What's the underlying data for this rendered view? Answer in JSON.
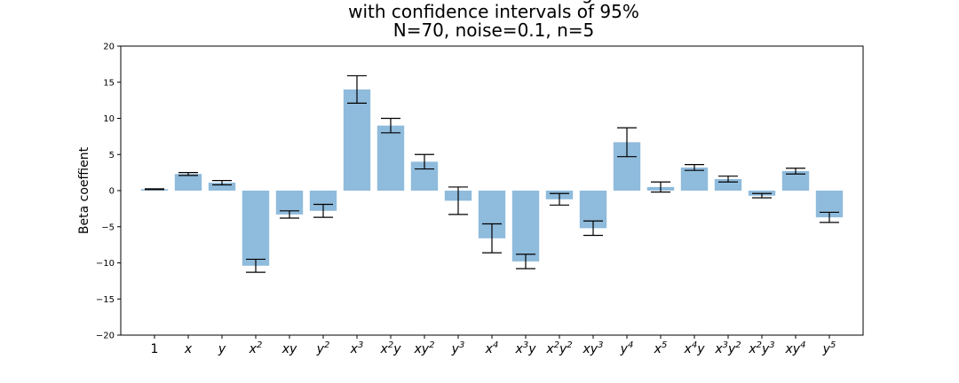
{
  "chart_data": {
    "type": "bar",
    "title_lines": [
      "Beta coefficient from OLS regression",
      "with confidence intervals of 95%",
      "N=70, noise=0.1, n=5"
    ],
    "ylabel": "Beta coeffient",
    "xlabel": "",
    "ylim": [
      -20,
      20
    ],
    "yticks": [
      "20",
      "15",
      "10",
      "5",
      "0",
      "−5",
      "−10",
      "−15",
      "−20"
    ],
    "categories": [
      {
        "base": "1",
        "sup1": "",
        "mid": "",
        "sup2": ""
      },
      {
        "base": "x",
        "sup1": "",
        "mid": "",
        "sup2": ""
      },
      {
        "base": "y",
        "sup1": "",
        "mid": "",
        "sup2": ""
      },
      {
        "base": "x",
        "sup1": "2",
        "mid": "",
        "sup2": ""
      },
      {
        "base": "xy",
        "sup1": "",
        "mid": "",
        "sup2": ""
      },
      {
        "base": "y",
        "sup1": "2",
        "mid": "",
        "sup2": ""
      },
      {
        "base": "x",
        "sup1": "3",
        "mid": "",
        "sup2": ""
      },
      {
        "base": "x",
        "sup1": "2",
        "mid": "y",
        "sup2": ""
      },
      {
        "base": "xy",
        "sup1": "2",
        "mid": "",
        "sup2": ""
      },
      {
        "base": "y",
        "sup1": "3",
        "mid": "",
        "sup2": ""
      },
      {
        "base": "x",
        "sup1": "4",
        "mid": "",
        "sup2": ""
      },
      {
        "base": "x",
        "sup1": "3",
        "mid": "y",
        "sup2": ""
      },
      {
        "base": "x",
        "sup1": "2",
        "mid": "y",
        "sup2": "2"
      },
      {
        "base": "xy",
        "sup1": "3",
        "mid": "",
        "sup2": ""
      },
      {
        "base": "y",
        "sup1": "4",
        "mid": "",
        "sup2": ""
      },
      {
        "base": "x",
        "sup1": "5",
        "mid": "",
        "sup2": ""
      },
      {
        "base": "x",
        "sup1": "4",
        "mid": "y",
        "sup2": ""
      },
      {
        "base": "x",
        "sup1": "3",
        "mid": "y",
        "sup2": "2"
      },
      {
        "base": "x",
        "sup1": "2",
        "mid": "y",
        "sup2": "3"
      },
      {
        "base": "xy",
        "sup1": "4",
        "mid": "",
        "sup2": ""
      },
      {
        "base": "y",
        "sup1": "5",
        "mid": "",
        "sup2": ""
      }
    ],
    "values": [
      0.2,
      2.3,
      1.1,
      -10.4,
      -3.3,
      -2.8,
      14.0,
      9.0,
      4.0,
      -1.4,
      -6.6,
      -9.8,
      -1.2,
      -5.2,
      6.7,
      0.5,
      3.2,
      1.6,
      -0.7,
      2.7,
      -3.7
    ],
    "ci_half_width": [
      0.05,
      0.2,
      0.3,
      0.9,
      0.5,
      0.9,
      1.9,
      1.0,
      1.0,
      1.9,
      2.0,
      1.0,
      0.8,
      1.0,
      2.0,
      0.7,
      0.4,
      0.4,
      0.3,
      0.4,
      0.7
    ],
    "bar_color": "#8fbbdc",
    "errorbar_color": "#000000"
  }
}
